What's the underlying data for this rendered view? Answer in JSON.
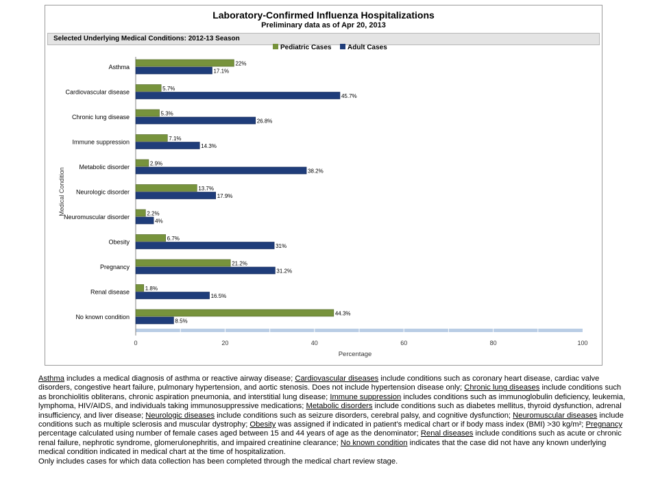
{
  "chart_data": {
    "type": "bar",
    "orientation": "horizontal",
    "title": "Laboratory-Confirmed Influenza Hospitalizations",
    "subtitle": "Preliminary data as of Apr 20, 2013",
    "panel_title": "Selected Underlying Medical Conditions: 2012-13 Season",
    "xlabel": "Percentage",
    "ylabel": "Medical Condition",
    "xlim": [
      0,
      100
    ],
    "xticks": [
      "0",
      "20",
      "40",
      "60",
      "80",
      "100"
    ],
    "legend_placement": "top-center",
    "categories": [
      "Asthma",
      "Cardiovascular disease",
      "Chronic lung disease",
      "Immune suppression",
      "Metabolic disorder",
      "Neurologic disorder",
      "Neuromuscular disorder",
      "Obesity",
      "Pregnancy",
      "Renal disease",
      "No known condition"
    ],
    "series": [
      {
        "name": "Pediatric Cases",
        "color": "#77933c",
        "values": [
          22,
          5.7,
          5.3,
          7.1,
          2.9,
          13.7,
          2.2,
          6.7,
          21.2,
          1.8,
          44.3
        ],
        "labels": [
          "22%",
          "5.7%",
          "5.3%",
          "7.1%",
          "2.9%",
          "13.7%",
          "2.2%",
          "6.7%",
          "21.2%",
          "1.8%",
          "44.3%"
        ]
      },
      {
        "name": "Adult Cases",
        "color": "#1f3d7a",
        "values": [
          17.1,
          45.7,
          26.8,
          14.3,
          38.2,
          17.9,
          4,
          31,
          31.2,
          16.5,
          8.5
        ],
        "labels": [
          "17.1%",
          "45.7%",
          "26.8%",
          "14.3%",
          "38.2%",
          "17.9%",
          "4%",
          "31%",
          "31.2%",
          "16.5%",
          "8.5%"
        ]
      }
    ]
  },
  "footnote": {
    "segments": [
      {
        "t": "Asthma",
        "u": true
      },
      {
        "t": " includes a medical diagnosis of asthma or reactive airway disease; ",
        "u": false
      },
      {
        "t": "Cardiovascular diseases",
        "u": true
      },
      {
        "t": " include conditions such as coronary heart disease, cardiac valve disorders, congestive heart failure, pulmonary hypertension, and aortic stenosis.  Does not include hypertension disease only;  ",
        "u": false
      },
      {
        "t": "Chronic lung diseases",
        "u": true
      },
      {
        "t": " include conditions such as bronchiolitis obliterans, chronic aspiration pneumonia, and interstitial lung disease;  ",
        "u": false
      },
      {
        "t": "Immune suppression",
        "u": true
      },
      {
        "t": " includes conditions such as immunoglobulin deficiency, leukemia, lymphoma, HIV/AIDS, and individuals taking immunosuppressive medications;  ",
        "u": false
      },
      {
        "t": "Metabolic disorders",
        "u": true
      },
      {
        "t": " include conditions such as diabetes mellitus, thyroid dysfunction, adrenal insufficiency, and liver disease;  ",
        "u": false
      },
      {
        "t": "Neurologic diseases",
        "u": true
      },
      {
        "t": " include conditions such as seizure disorders, cerebral palsy, and cognitive dysfunction;  ",
        "u": false
      },
      {
        "t": "Neuromuscular diseases",
        "u": true
      },
      {
        "t": " include conditions such as multiple sclerosis and muscular dystrophy;  ",
        "u": false
      },
      {
        "t": "Obesity",
        "u": true
      },
      {
        "t": " was assigned if indicated in patient’s medical chart or if body mass index (BMI) >30 kg/m²;  ",
        "u": false
      },
      {
        "t": "Pregnancy",
        "u": true
      },
      {
        "t": " percentage calculated using number of female cases aged between 15 and 44 years of age as the denominator;  ",
        "u": false
      },
      {
        "t": "Renal diseases",
        "u": true
      },
      {
        "t": " include conditions such as acute or chronic renal failure, nephrotic syndrome, glomerulonephritis, and impaired creatinine clearance;  ",
        "u": false
      },
      {
        "t": "No known condition",
        "u": true
      },
      {
        "t": " indicates that the case did not have any known underlying medical condition indicated in medical chart at the time of hospitalization.",
        "u": false
      }
    ],
    "last_line": "Only includes cases for which data collection has been completed through the medical chart review stage."
  }
}
